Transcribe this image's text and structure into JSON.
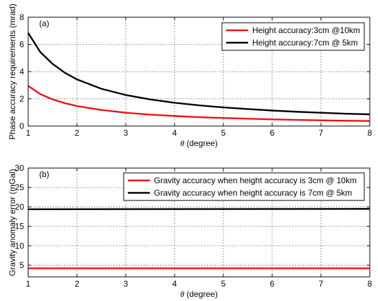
{
  "chart_data": [
    {
      "type": "line",
      "panel_label": "(a)",
      "xlabel_symbol": "θ",
      "xlabel_unit": " (degree)",
      "ylabel": "Phase accuracy requirements (mrad)",
      "xlim": [
        1,
        8
      ],
      "ylim": [
        0,
        8
      ],
      "xticks": [
        1,
        2,
        3,
        4,
        5,
        6,
        7,
        8
      ],
      "yticks": [
        0,
        2,
        4,
        6,
        8
      ],
      "grid": true,
      "legend_position": "top-right",
      "series": [
        {
          "name": "Height accuracy:3cm @10km",
          "color": "#ee1111",
          "x": [
            1,
            1.25,
            1.5,
            1.75,
            2,
            2.5,
            3,
            3.5,
            4,
            4.5,
            5,
            5.5,
            6,
            6.5,
            7,
            7.5,
            8
          ],
          "y": [
            2.95,
            2.34,
            1.96,
            1.68,
            1.47,
            1.18,
            0.98,
            0.84,
            0.74,
            0.65,
            0.59,
            0.54,
            0.49,
            0.45,
            0.42,
            0.39,
            0.37
          ]
        },
        {
          "name": "Height accuracy:7cm @ 5km",
          "color": "#000000",
          "x": [
            1,
            1.25,
            1.5,
            1.75,
            2,
            2.5,
            3,
            3.5,
            4,
            4.5,
            5,
            5.5,
            6,
            6.5,
            7,
            7.5,
            8
          ],
          "y": [
            6.85,
            5.43,
            4.57,
            3.92,
            3.43,
            2.74,
            2.28,
            1.96,
            1.71,
            1.52,
            1.37,
            1.25,
            1.14,
            1.05,
            0.98,
            0.91,
            0.86
          ]
        }
      ]
    },
    {
      "type": "line",
      "panel_label": "(b)",
      "xlabel_symbol": "θ",
      "xlabel_unit": " (degree)",
      "ylabel": "Gravity anomaly error (mGal)",
      "xlim": [
        1,
        8
      ],
      "ylim": [
        2,
        30
      ],
      "xticks": [
        1,
        2,
        3,
        4,
        5,
        6,
        7,
        8
      ],
      "yticks": [
        5,
        10,
        15,
        20,
        25,
        30
      ],
      "grid": true,
      "legend_position": "top-right",
      "series": [
        {
          "name": "Gravity accuracy when height accuracy is 3cm @ 10km",
          "color": "#ee1111",
          "x": [
            1,
            8
          ],
          "y": [
            4.2,
            4.2
          ]
        },
        {
          "name": "Gravity accuracy when height accuracy is 7cm @ 5km",
          "color": "#000000",
          "x": [
            1,
            8
          ],
          "y": [
            19.4,
            19.5
          ]
        }
      ]
    }
  ]
}
